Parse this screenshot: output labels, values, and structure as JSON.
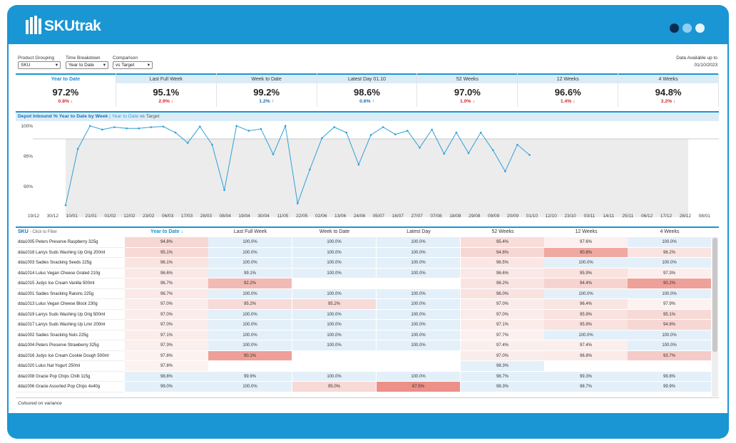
{
  "header": {
    "logo": "SKUtrak"
  },
  "filters": [
    {
      "label": "Product Grouping",
      "value": "SKU"
    },
    {
      "label": "Time Breakdown",
      "value": "Year to Date"
    },
    {
      "label": "Comparison",
      "value": "vs Target"
    }
  ],
  "availability": {
    "label": "Data Available up to",
    "date": "01/10/2023"
  },
  "kpis": [
    {
      "name": "Year to Date",
      "value": "97.2%",
      "delta": "0.8% ↓"
    },
    {
      "name": "Last Full Week",
      "value": "95.1%",
      "delta": "2.9% ↓"
    },
    {
      "name": "Week to Date",
      "value": "99.2%",
      "delta": "1.2% ↑"
    },
    {
      "name": "Latest Day 01.10",
      "value": "98.6%",
      "delta": "0.6% ↑"
    },
    {
      "name": "52 Weeks",
      "value": "97.0%",
      "delta": "1.0% ↓"
    },
    {
      "name": "12 Weeks",
      "value": "96.6%",
      "delta": "1.4% ↓"
    },
    {
      "name": "4 Weeks",
      "value": "94.8%",
      "delta": "3.2% ↓"
    }
  ],
  "chart_data": {
    "type": "line",
    "title": "Depot Inbound % Year to Date by Week",
    "title_sep": "|",
    "title_measure": "Year to Date",
    "title_compare": "vs Target",
    "color": "#2fa0d8",
    "xticks": [
      "19/12",
      "30/12",
      "10/01",
      "21/01",
      "01/02",
      "12/02",
      "23/02",
      "06/03",
      "17/03",
      "28/03",
      "08/04",
      "19/04",
      "30/04",
      "11/05",
      "22/05",
      "02/06",
      "13/06",
      "24/06",
      "05/07",
      "16/07",
      "27/07",
      "07/08",
      "18/08",
      "29/08",
      "09/09",
      "20/09",
      "01/10",
      "12/10",
      "23/10",
      "03/11",
      "14/11",
      "25/11",
      "06/12",
      "17/12",
      "28/12",
      "08/01"
    ],
    "values": [
      86.9,
      96.2,
      100,
      99.4,
      99.8,
      99.6,
      99.6,
      99.8,
      99.9,
      98.9,
      97.2,
      99.9,
      96.9,
      89.4,
      100,
      99.2,
      99.5,
      95.3,
      100,
      87.2,
      92.8,
      98.0,
      99.8,
      98.9,
      93.6,
      98.5,
      99.8,
      98.6,
      99.2,
      96.4,
      99.4,
      95.4,
      98.9,
      95.5,
      98.9,
      96.0,
      92.5,
      96.9,
      95.2
    ],
    "ylim": [
      85.3,
      100.8
    ],
    "yticks": [
      {
        "value": 100,
        "label": "100%"
      },
      {
        "value": 95,
        "label": "95%"
      },
      {
        "value": 90,
        "label": "90%"
      }
    ]
  },
  "table": {
    "sku_header": "SKU",
    "sku_hint": "- Click to Filter",
    "columns": [
      "Year to Date ↓",
      "Last Full Week",
      "Week to Date",
      "Latest Day",
      "52 Weeks",
      "12 Weeks",
      "4 Weeks"
    ],
    "rows": [
      [
        "dda1005 Peters Preserve Raspberry 325g",
        "94.8%",
        "100.0%",
        "100.0%",
        "100.0%",
        "95.4%",
        "97.6%",
        "100.0%"
      ],
      [
        "dda1018 Larrys Suds Washing Up Orig 200ml",
        "95.1%",
        "100.0%",
        "100.0%",
        "100.0%",
        "94.8%",
        "90.8%",
        "96.2%"
      ],
      [
        "dda1003 Sadies Snacking Seeds 225g",
        "96.1%",
        "100.0%",
        "100.0%",
        "100.0%",
        "96.5%",
        "100.0%",
        "100.0%"
      ],
      [
        "dda1014 Lulus Vegan Cheese Grated 210g",
        "96.6%",
        "99.1%",
        "100.0%",
        "100.0%",
        "96.6%",
        "95.9%",
        "97.3%"
      ],
      [
        "dda1015 Judys Ice Cream Vanilla 500ml",
        "96.7%",
        "92.2%",
        null,
        null,
        "96.2%",
        "94.4%",
        "90.2%"
      ],
      [
        "dda1001 Sadies Snacking Raisins 225g",
        "96.7%",
        "100.0%",
        "100.0%",
        "100.0%",
        "96.0%",
        "100.0%",
        "100.0%"
      ],
      [
        "dda1013 Lulus Vegan Cheese Block 230g",
        "97.0%",
        "95.2%",
        "95.2%",
        "100.0%",
        "97.0%",
        "96.4%",
        "97.9%"
      ],
      [
        "dda1019 Larrys Suds Washing Up Orig 500ml",
        "97.0%",
        "100.0%",
        "100.0%",
        "100.0%",
        "97.0%",
        "95.9%",
        "95.1%"
      ],
      [
        "dda1017 Larrys Suds Washing Up Lmn 200ml",
        "97.0%",
        "100.0%",
        "100.0%",
        "100.0%",
        "97.1%",
        "95.9%",
        "94.8%"
      ],
      [
        "dda1002 Sadies Snacking Nuts 225g",
        "97.1%",
        "100.0%",
        "100.0%",
        "100.0%",
        "97.7%",
        "100.0%",
        "100.0%"
      ],
      [
        "dda1004 Peters Preserve Strawberry 325g",
        "97.3%",
        "100.0%",
        "100.0%",
        "100.0%",
        "97.4%",
        "97.4%",
        "100.0%"
      ],
      [
        "dda1016 Judys Ice Cream Cookie Dough 500ml",
        "97.8%",
        "90.1%",
        null,
        null,
        "97.0%",
        "96.8%",
        "93.7%"
      ],
      [
        "dda1020 Lulus Nat Yogurt 250ml",
        "97.8%",
        null,
        null,
        null,
        "98.3%",
        null,
        null
      ],
      [
        "dda1008 Gracie Pop Chips Chilli 115g",
        "98.8%",
        "99.9%",
        "100.0%",
        "100.0%",
        "98.7%",
        "99.3%",
        "99.8%"
      ],
      [
        "dda1006 Gracie Assorted Pop Chips 4x40g",
        "99.0%",
        "100.0%",
        "95.0%",
        "87.5%",
        "98.3%",
        "98.7%",
        "99.9%"
      ]
    ]
  },
  "footer": {
    "note": "Coloured on variance"
  }
}
